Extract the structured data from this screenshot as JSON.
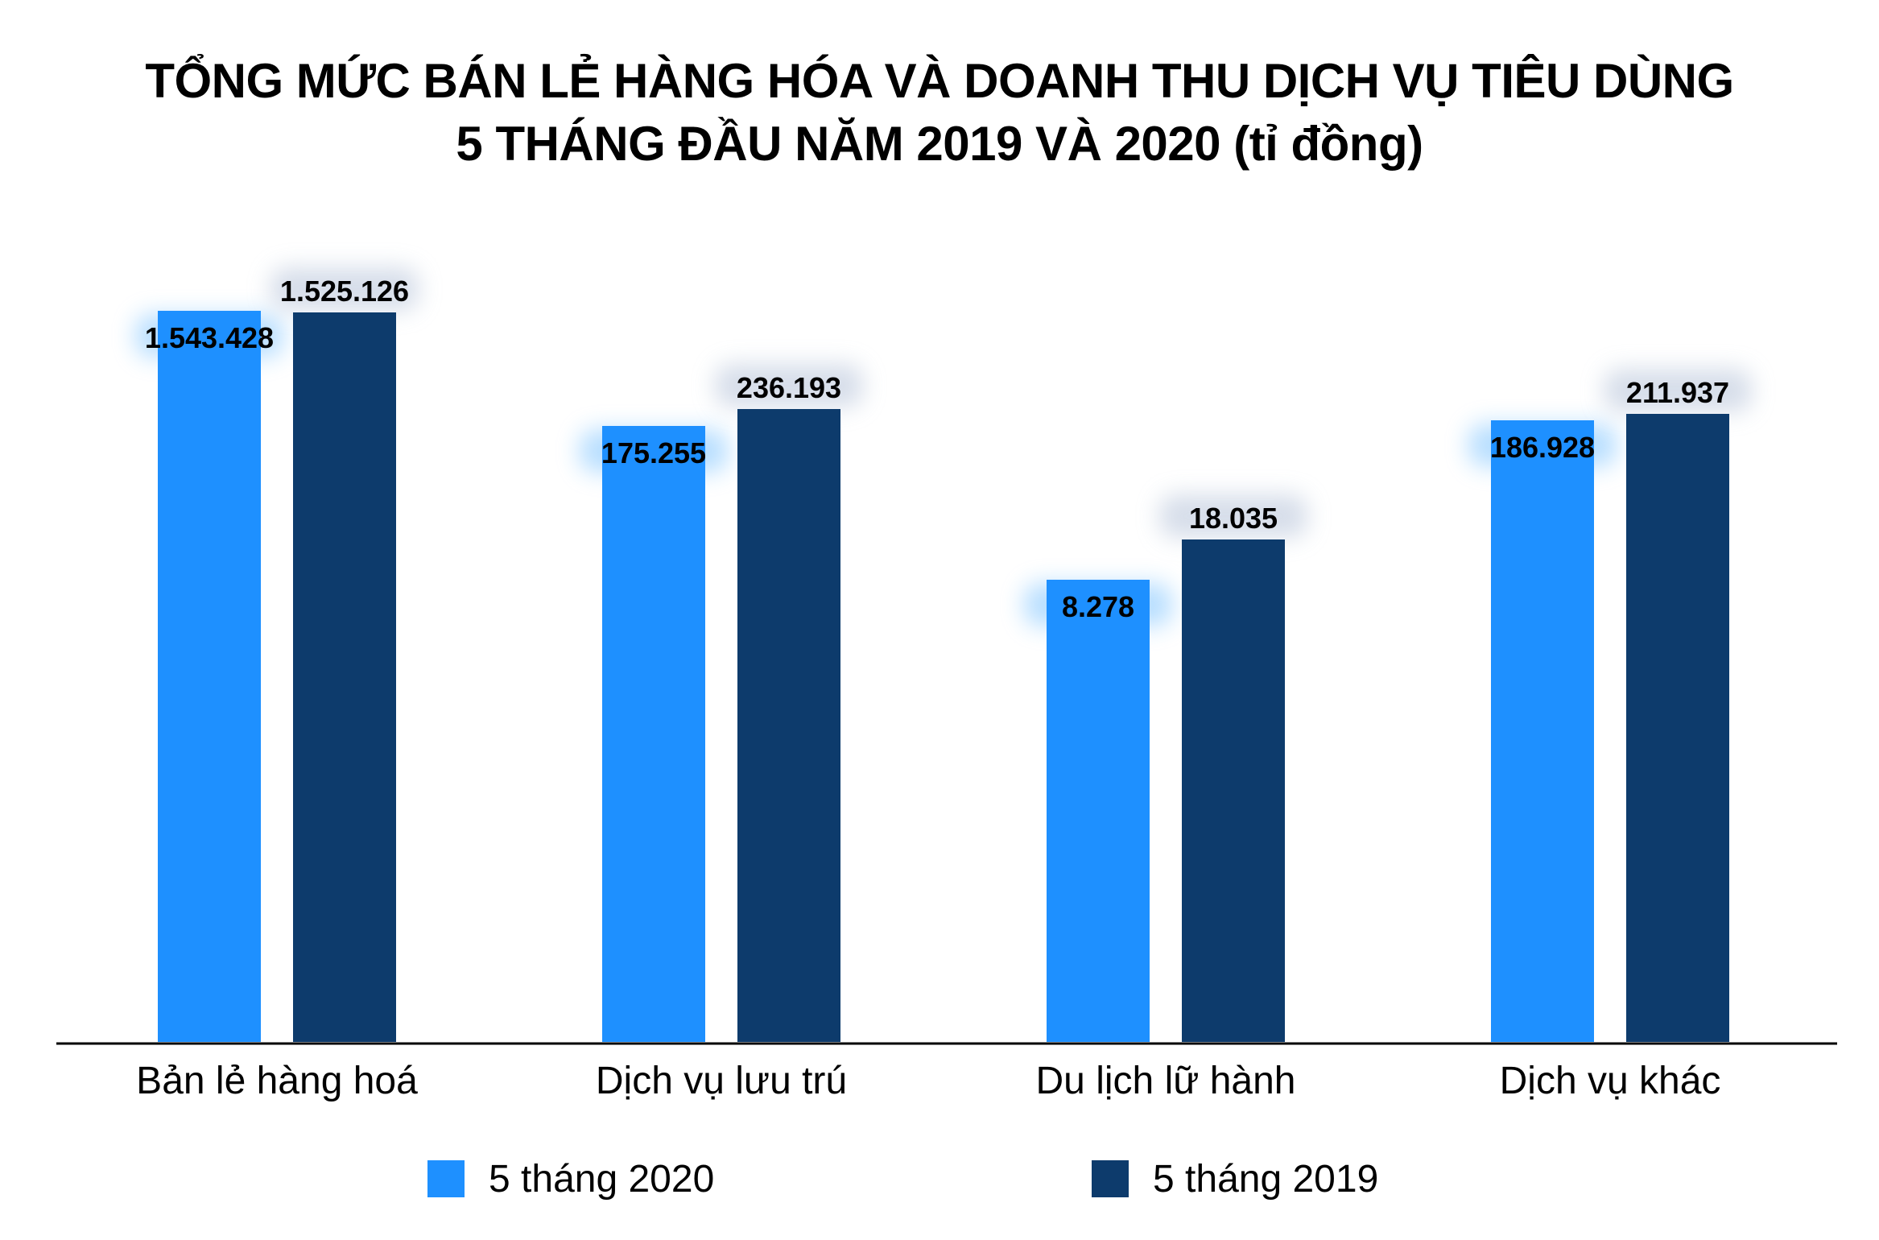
{
  "colors": {
    "series_2020": "#1e90ff",
    "series_2019": "#0d3b6c",
    "axis": "#000000",
    "glow": "#c9d3e3"
  },
  "chart_data": {
    "type": "bar",
    "title": [
      "TỔNG MỨC BÁN LẺ HÀNG HÓA VÀ DOANH THU DỊCH VỤ TIÊU DÙNG",
      "5 THÁNG ĐẦU NĂM 2019 VÀ 2020 (tỉ đồng)"
    ],
    "xlabel": "",
    "ylabel": "",
    "grid": false,
    "legend_position": "bottom",
    "categories": [
      "Bản lẻ hàng hoá",
      "Dịch vụ lưu trú",
      "Du lịch lữ hành",
      "Dịch vụ khác"
    ],
    "series": [
      {
        "name": "5 tháng 2020",
        "values": [
          1543428,
          175255,
          8278,
          186928
        ],
        "labels": [
          "1.543.428",
          "175.255",
          "8.278",
          "186.928"
        ]
      },
      {
        "name": "5 tháng 2019",
        "values": [
          1525126,
          236193,
          18035,
          211937
        ],
        "labels": [
          "1.525.126",
          "236.193",
          "18.035",
          "211.937"
        ]
      }
    ]
  }
}
